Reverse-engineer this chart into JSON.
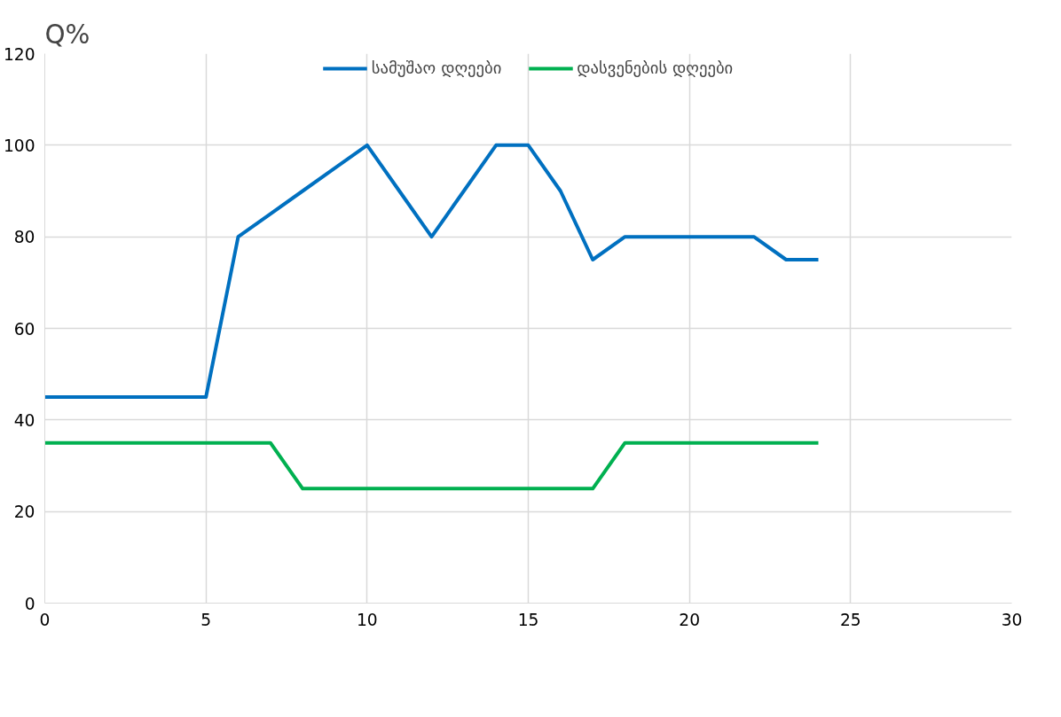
{
  "chart_data": {
    "type": "line",
    "annotations": [
      "Q%"
    ],
    "x": [
      0,
      1,
      2,
      3,
      4,
      5,
      6,
      7,
      8,
      9,
      10,
      11,
      12,
      13,
      14,
      15,
      16,
      17,
      18,
      19,
      20,
      21,
      22,
      23,
      24
    ],
    "series": [
      {
        "name": "სამუშაო დღეები",
        "color": "#0070c0",
        "values": [
          45,
          45,
          45,
          45,
          45,
          45,
          80,
          85,
          90,
          95,
          100,
          90,
          80,
          90,
          100,
          100,
          90,
          75,
          80,
          80,
          80,
          80,
          80,
          75,
          75
        ]
      },
      {
        "name": "დასვენების დღეები",
        "color": "#00b050",
        "values": [
          35,
          35,
          35,
          35,
          35,
          35,
          35,
          35,
          25,
          25,
          25,
          25,
          25,
          25,
          25,
          25,
          25,
          25,
          35,
          35,
          35,
          35,
          35,
          35,
          35
        ]
      }
    ],
    "xlim": [
      0,
      30
    ],
    "xticks": [
      0,
      5,
      10,
      15,
      20,
      25,
      30
    ],
    "ylim": [
      0,
      120
    ],
    "yticks": [
      0,
      20,
      40,
      60,
      80,
      100,
      120
    ],
    "grid": true,
    "legend": "top",
    "marker": "none",
    "line_style": "solid"
  }
}
